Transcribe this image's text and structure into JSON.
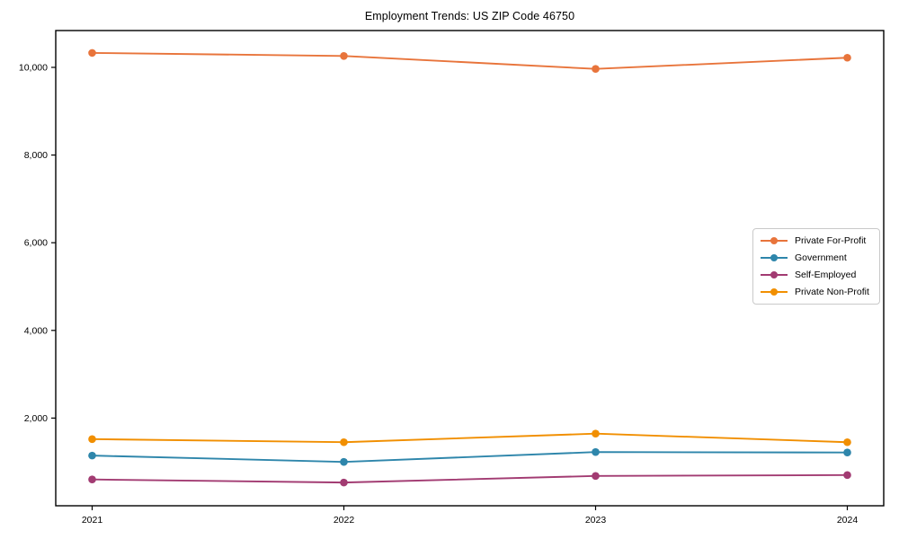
{
  "chart_data": {
    "type": "line",
    "title": "Employment Trends: US ZIP Code 46750",
    "xlabel": "",
    "ylabel": "",
    "categories": [
      "2021",
      "2022",
      "2023",
      "2024"
    ],
    "series": [
      {
        "name": "Private For-Profit",
        "color": "#E8743B",
        "values": [
          10330,
          10260,
          9965,
          10220
        ]
      },
      {
        "name": "Government",
        "color": "#2E86AB",
        "values": [
          1145,
          1000,
          1225,
          1215
        ]
      },
      {
        "name": "Self-Employed",
        "color": "#A23B72",
        "values": [
          600,
          530,
          680,
          700
        ]
      },
      {
        "name": "Private Non-Profit",
        "color": "#F18F01",
        "values": [
          1520,
          1450,
          1645,
          1450
        ]
      }
    ],
    "ylim": [
      0,
      10840
    ],
    "yticks": [
      2000,
      4000,
      6000,
      8000,
      10000
    ],
    "ytick_labels": [
      "2,000",
      "4,000",
      "6,000",
      "8,000",
      "10,000"
    ],
    "grid": false,
    "legend_position": "center right",
    "marker": "circle",
    "axis_color": "#000000",
    "background_color": "#ffffff"
  }
}
